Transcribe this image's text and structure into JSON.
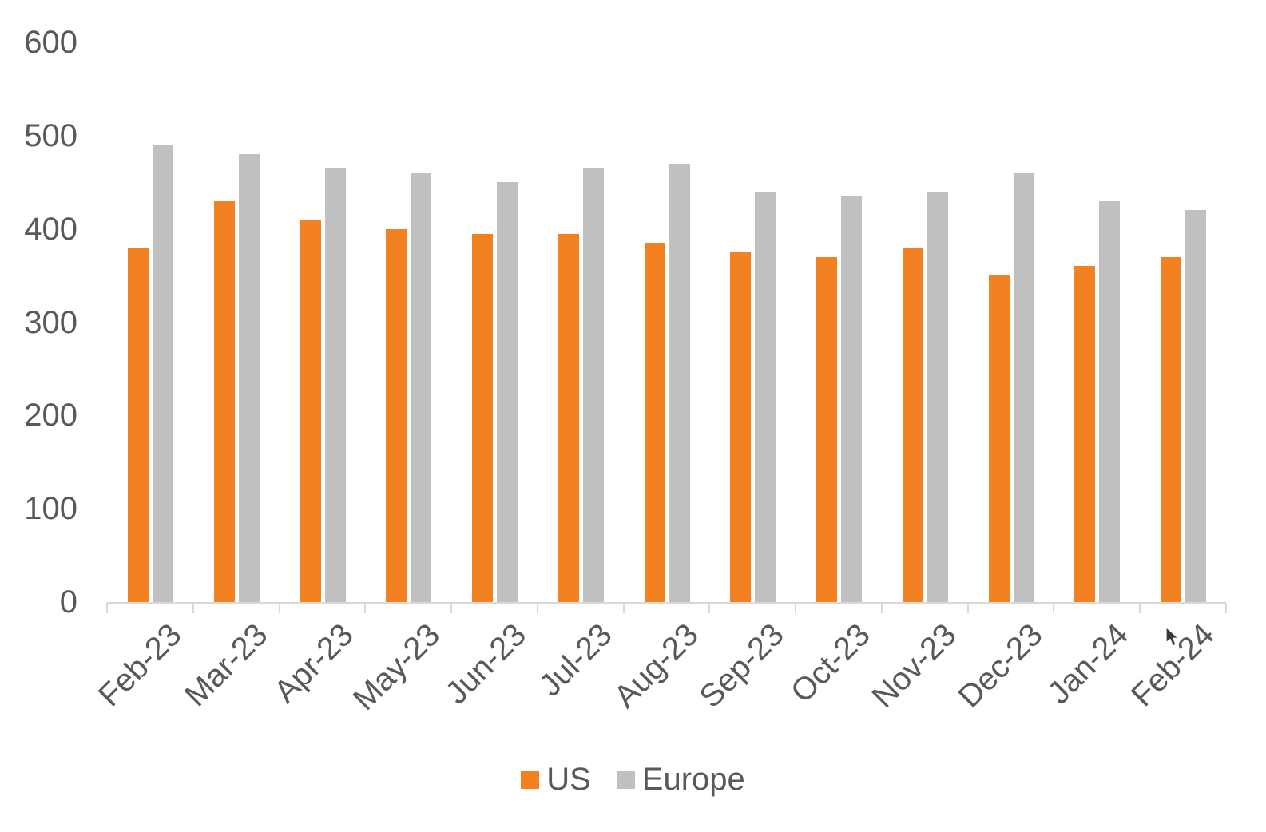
{
  "chart_data": {
    "type": "bar",
    "title": "",
    "categories": [
      "Feb-23",
      "Mar-23",
      "Apr-23",
      "May-23",
      "Jun-23",
      "Jul-23",
      "Aug-23",
      "Sep-23",
      "Oct-23",
      "Nov-23",
      "Dec-23",
      "Jan-24",
      "Feb-24"
    ],
    "series": [
      {
        "name": "US",
        "color": "#F28122",
        "values": [
          380,
          430,
          410,
          400,
          395,
          395,
          385,
          375,
          370,
          380,
          350,
          360,
          370
        ]
      },
      {
        "name": "Europe",
        "color": "#C0C0C0",
        "values": [
          490,
          480,
          465,
          460,
          450,
          465,
          470,
          440,
          435,
          440,
          460,
          430,
          420
        ]
      }
    ],
    "ylim": [
      0,
      600
    ],
    "yticks": [
      0,
      100,
      200,
      300,
      400,
      500,
      600
    ],
    "xlabel": "",
    "ylabel": "",
    "grid": false,
    "legend_position": "bottom",
    "axis_color": "#D9D9D9",
    "label_color": "#595959"
  }
}
